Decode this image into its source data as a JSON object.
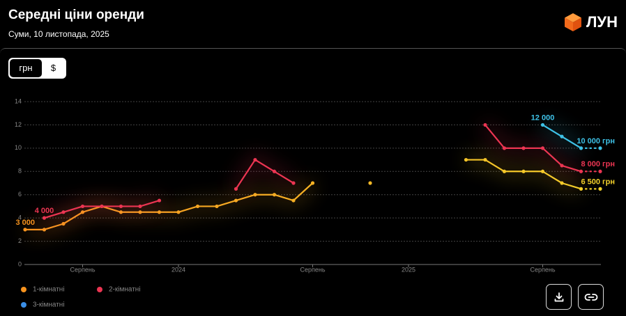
{
  "header": {
    "title": "Середні ціни оренди",
    "subtitle": "Суми, 10 листопада, 2025",
    "logo": "ЛУН"
  },
  "currency_toggle": {
    "options": [
      "грн",
      "$"
    ],
    "selected": 0
  },
  "chart_data": {
    "type": "line",
    "categories": [
      null,
      null,
      null,
      "Серпень",
      null,
      null,
      null,
      null,
      "2024",
      null,
      null,
      null,
      null,
      null,
      null,
      "Серпень",
      null,
      null,
      null,
      null,
      "2025",
      null,
      null,
      null,
      null,
      null,
      null,
      "Серпень",
      null,
      null,
      null
    ],
    "ylim": [
      0,
      14
    ],
    "yticks": [
      0,
      2,
      4,
      6,
      8,
      10,
      12,
      14
    ],
    "grid": true,
    "series": [
      {
        "name": "1-кімнатні",
        "color": "#f7931e",
        "gradient_to": "#f4d22b",
        "values": [
          3,
          3,
          3.5,
          4.5,
          5,
          4.5,
          4.5,
          4.5,
          4.5,
          5,
          5,
          5.5,
          6,
          6,
          5.5,
          7,
          null,
          null,
          7,
          null,
          null,
          null,
          null,
          9,
          9,
          8,
          8,
          8,
          7,
          6.5,
          6.5
        ],
        "value_labels": [
          "3 000",
          null,
          null,
          null,
          null,
          null,
          null,
          null,
          null,
          null,
          null,
          null,
          null,
          null,
          null,
          null,
          null,
          null,
          null,
          null,
          null,
          null,
          null,
          null,
          null,
          null,
          null,
          null,
          null,
          null,
          "6 500 грн"
        ]
      },
      {
        "name": "2-кімнатні",
        "color": "#ec3552",
        "values": [
          null,
          4,
          4.5,
          5,
          5,
          5,
          5,
          5.5,
          null,
          null,
          null,
          6.5,
          9,
          8,
          7,
          null,
          null,
          null,
          null,
          null,
          null,
          null,
          null,
          null,
          12,
          10,
          10,
          10,
          8.5,
          8,
          8
        ],
        "value_labels": [
          null,
          "4 000",
          null,
          null,
          null,
          null,
          null,
          null,
          null,
          null,
          null,
          null,
          null,
          null,
          null,
          null,
          null,
          null,
          null,
          null,
          null,
          null,
          null,
          null,
          null,
          null,
          null,
          null,
          null,
          null,
          "8 000 грн"
        ]
      },
      {
        "name": "3-кімнатні",
        "color": "#3ec1e6",
        "values": [
          null,
          null,
          null,
          null,
          null,
          null,
          null,
          null,
          null,
          null,
          null,
          null,
          null,
          null,
          null,
          null,
          null,
          null,
          null,
          null,
          null,
          null,
          null,
          null,
          null,
          null,
          null,
          12,
          11,
          10,
          10
        ],
        "value_labels": [
          null,
          null,
          null,
          null,
          null,
          null,
          null,
          null,
          null,
          null,
          null,
          null,
          null,
          null,
          null,
          null,
          null,
          null,
          null,
          null,
          null,
          null,
          null,
          null,
          null,
          null,
          null,
          "12 000",
          null,
          null,
          "10 000 грн"
        ]
      }
    ]
  }
}
